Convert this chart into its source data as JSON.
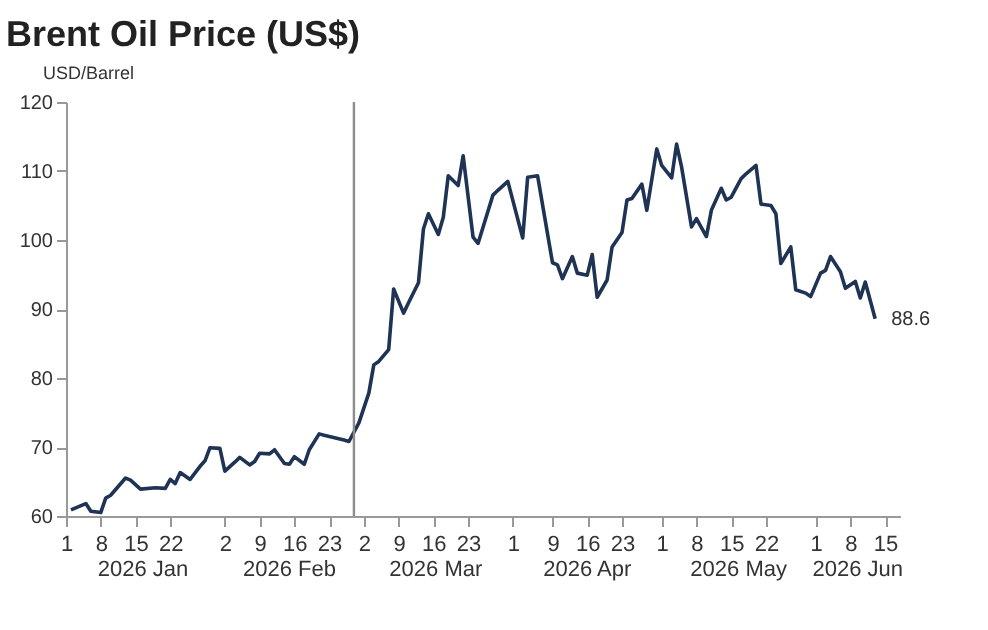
{
  "chart_data": {
    "type": "line",
    "title": "Brent Oil Price (US$)",
    "ylabel": "USD/Barrel",
    "x": [
      "2026-01-02",
      "2026-01-05",
      "2026-01-06",
      "2026-01-08",
      "2026-01-09",
      "2026-01-10",
      "2026-01-13",
      "2026-01-14",
      "2026-01-16",
      "2026-01-19",
      "2026-01-21",
      "2026-01-22",
      "2026-01-23",
      "2026-01-24",
      "2026-01-26",
      "2026-01-28",
      "2026-01-29",
      "2026-01-30",
      "2026-02-01",
      "2026-02-02",
      "2026-02-04",
      "2026-02-05",
      "2026-02-07",
      "2026-02-08",
      "2026-02-09",
      "2026-02-11",
      "2026-02-12",
      "2026-02-14",
      "2026-02-15",
      "2026-02-16",
      "2026-02-18",
      "2026-02-19",
      "2026-02-21",
      "2026-02-22",
      "2026-02-26",
      "2026-02-27",
      "2026-03-01",
      "2026-03-03",
      "2026-03-04",
      "2026-03-05",
      "2026-03-07",
      "2026-03-08",
      "2026-03-10",
      "2026-03-11",
      "2026-03-13",
      "2026-03-14",
      "2026-03-15",
      "2026-03-17",
      "2026-03-18",
      "2026-03-19",
      "2026-03-21",
      "2026-03-22",
      "2026-03-24",
      "2026-03-25",
      "2026-03-28",
      "2026-03-29",
      "2026-03-31",
      "2026-04-03",
      "2026-04-04",
      "2026-04-06",
      "2026-04-09",
      "2026-04-10",
      "2026-04-11",
      "2026-04-13",
      "2026-04-14",
      "2026-04-16",
      "2026-04-17",
      "2026-04-18",
      "2026-04-20",
      "2026-04-21",
      "2026-04-23",
      "2026-04-24",
      "2026-04-25",
      "2026-04-27",
      "2026-04-28",
      "2026-04-30",
      "2026-05-01",
      "2026-05-03",
      "2026-05-04",
      "2026-05-05",
      "2026-05-07",
      "2026-05-08",
      "2026-05-10",
      "2026-05-11",
      "2026-05-13",
      "2026-05-14",
      "2026-05-15",
      "2026-05-17",
      "2026-05-18",
      "2026-05-20",
      "2026-05-21",
      "2026-05-23",
      "2026-05-24",
      "2026-05-25",
      "2026-05-27",
      "2026-05-28",
      "2026-05-30",
      "2026-05-31",
      "2026-06-02",
      "2026-06-03",
      "2026-06-04",
      "2026-06-06",
      "2026-06-07",
      "2026-06-09",
      "2026-06-10",
      "2026-06-11",
      "2026-06-13"
    ],
    "series": [
      {
        "color": "#1f3354",
        "values": [
          60.9,
          61.8,
          60.7,
          60.5,
          62.6,
          63.0,
          65.5,
          65.2,
          63.9,
          64.1,
          64.0,
          65.3,
          64.7,
          66.3,
          65.3,
          67.2,
          68.0,
          69.9,
          69.8,
          66.5,
          67.8,
          68.5,
          67.4,
          67.9,
          69.1,
          69.0,
          69.6,
          67.6,
          67.5,
          68.6,
          67.5,
          69.6,
          71.9,
          71.7,
          71.0,
          70.8,
          73.5,
          77.8,
          81.9,
          82.4,
          84.1,
          92.9,
          89.4,
          90.9,
          93.8,
          101.6,
          103.8,
          100.8,
          103.3,
          109.3,
          107.9,
          112.2,
          100.4,
          99.5,
          106.5,
          107.2,
          108.5,
          100.3,
          109.1,
          109.3,
          96.7,
          96.4,
          94.4,
          97.6,
          95.2,
          94.9,
          97.9,
          91.7,
          94.2,
          99.0,
          101.1,
          105.8,
          106.0,
          108.1,
          104.3,
          113.2,
          110.8,
          109.0,
          113.9,
          110.6,
          101.9,
          103.1,
          100.5,
          104.3,
          107.5,
          105.8,
          106.2,
          108.9,
          109.6,
          110.8,
          105.2,
          105.0,
          103.8,
          96.6,
          99.0,
          92.8,
          92.3,
          91.8,
          95.2,
          95.6,
          97.6,
          95.4,
          93.0,
          94.0,
          91.6,
          93.9,
          88.6
        ],
        "value_labels": [
          null,
          null,
          null,
          null,
          null,
          null,
          null,
          null,
          null,
          null,
          null,
          null,
          null,
          null,
          null,
          null,
          null,
          null,
          null,
          null,
          null,
          null,
          null,
          null,
          null,
          null,
          null,
          null,
          null,
          null,
          null,
          null,
          null,
          null,
          null,
          null,
          null,
          null,
          null,
          null,
          null,
          null,
          null,
          null,
          null,
          null,
          null,
          null,
          null,
          null,
          null,
          null,
          null,
          null,
          null,
          null,
          null,
          null,
          null,
          null,
          null,
          null,
          null,
          null,
          null,
          null,
          null,
          null,
          null,
          null,
          null,
          null,
          null,
          null,
          null,
          null,
          null,
          null,
          null,
          null,
          null,
          null,
          null,
          null,
          null,
          null,
          null,
          null,
          null,
          null,
          null,
          null,
          null,
          null,
          null,
          null,
          null,
          null,
          null,
          null,
          null,
          null,
          null,
          null,
          null,
          null,
          "88.6"
        ]
      }
    ],
    "xlim": [
      "2026-01-01",
      "2026-06-18"
    ],
    "xticks": [
      {
        "value": "2026-01-01",
        "label": "1"
      },
      {
        "value": "2026-01-08",
        "label": "8"
      },
      {
        "value": "2026-01-15",
        "label": "15"
      },
      {
        "value": "2026-01-22",
        "label": "22"
      },
      {
        "value": "2026-02-02",
        "label": "2"
      },
      {
        "value": "2026-02-09",
        "label": "9"
      },
      {
        "value": "2026-02-16",
        "label": "16"
      },
      {
        "value": "2026-02-23",
        "label": "23"
      },
      {
        "value": "2026-03-02",
        "label": "2"
      },
      {
        "value": "2026-03-09",
        "label": "9"
      },
      {
        "value": "2026-03-16",
        "label": "16"
      },
      {
        "value": "2026-03-23",
        "label": "23"
      },
      {
        "value": "2026-04-01",
        "label": "1"
      },
      {
        "value": "2026-04-09",
        "label": "9"
      },
      {
        "value": "2026-04-16",
        "label": "16"
      },
      {
        "value": "2026-04-23",
        "label": "23"
      },
      {
        "value": "2026-05-01",
        "label": "1"
      },
      {
        "value": "2026-05-08",
        "label": "8"
      },
      {
        "value": "2026-05-15",
        "label": "15"
      },
      {
        "value": "2026-05-22",
        "label": "22"
      },
      {
        "value": "2026-06-01",
        "label": "1"
      },
      {
        "value": "2026-06-08",
        "label": "8"
      },
      {
        "value": "2026-06-15",
        "label": "15"
      }
    ],
    "ylim": [
      60,
      120
    ],
    "yticks": [
      60,
      70,
      80,
      90,
      100,
      110,
      120
    ],
    "ref_lines": [
      {
        "axis": "x",
        "value": "2026-02-28",
        "color": "#8c8c8c"
      }
    ],
    "annotations": [
      "2026 Jan",
      "2026 Feb",
      "2026 Mar",
      "2026 Apr",
      "2026 May",
      "2026 Jun"
    ],
    "marker": "none",
    "line_style": "solid"
  }
}
